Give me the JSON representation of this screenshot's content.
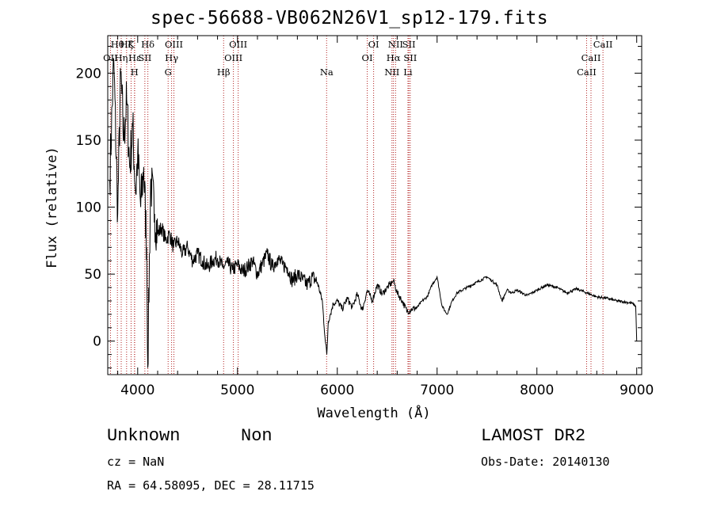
{
  "chart_data": {
    "type": "line",
    "title": "spec-56688-VB062N26V1_sp12-179.fits",
    "xlabel": "Wavelength (Å)",
    "ylabel": "Flux (relative)",
    "xlim": [
      3700,
      9050
    ],
    "ylim": [
      -25,
      228
    ],
    "xticks": [
      4000,
      5000,
      6000,
      7000,
      8000,
      9000
    ],
    "yticks": [
      0,
      50,
      100,
      150,
      200
    ],
    "grid": false,
    "series": [
      {
        "x": [
          3720,
          3760,
          3800,
          3830,
          3860,
          3890,
          3920,
          3950,
          3980,
          4000,
          4030,
          4060,
          4090,
          4101,
          4130,
          4170,
          4200,
          4240,
          4280,
          4320,
          4360,
          4400,
          4450,
          4500,
          4550,
          4600,
          4650,
          4700,
          4750,
          4800,
          4850,
          4900,
          4950,
          5000,
          5050,
          5100,
          5150,
          5200,
          5250,
          5300,
          5350,
          5400,
          5450,
          5500,
          5550,
          5600,
          5650,
          5700,
          5750,
          5800,
          5850,
          5880,
          5895,
          5910,
          5930,
          5960,
          6000,
          6050,
          6100,
          6150,
          6200,
          6250,
          6300,
          6350,
          6400,
          6450,
          6500,
          6550,
          6563,
          6600,
          6650,
          6700,
          6750,
          6800,
          6850,
          6900,
          6950,
          7000,
          7050,
          7100,
          7150,
          7200,
          7300,
          7400,
          7500,
          7550,
          7600,
          7650,
          7700,
          7750,
          7800,
          7900,
          8000,
          8100,
          8200,
          8300,
          8400,
          8500,
          8600,
          8700,
          8800,
          8900,
          8960,
          8990,
          9000
        ],
        "y": [
          120,
          210,
          95,
          200,
          150,
          180,
          130,
          160,
          110,
          140,
          100,
          130,
          70,
          -20,
          120,
          95,
          80,
          85,
          75,
          80,
          70,
          75,
          65,
          70,
          60,
          65,
          60,
          55,
          60,
          62,
          55,
          58,
          53,
          57,
          52,
          55,
          60,
          50,
          58,
          65,
          55,
          62,
          57,
          55,
          45,
          50,
          46,
          42,
          48,
          44,
          30,
          0,
          -10,
          15,
          20,
          28,
          30,
          24,
          32,
          25,
          35,
          23,
          38,
          30,
          42,
          35,
          40,
          44,
          45,
          36,
          30,
          22,
          24,
          25,
          30,
          33,
          42,
          48,
          26,
          20,
          30,
          36,
          40,
          44,
          48,
          45,
          42,
          30,
          38,
          36,
          38,
          34,
          38,
          42,
          40,
          36,
          39,
          36,
          33,
          32,
          30,
          29,
          28,
          26,
          0
        ]
      }
    ],
    "line_labels": [
      {
        "text": "OII",
        "wl": 3727,
        "row": 2
      },
      {
        "text": "Hθ",
        "wl": 3797,
        "row": 1
      },
      {
        "text": "Hη",
        "wl": 3835,
        "row": 2
      },
      {
        "text": "Hζ",
        "wl": 3889,
        "row": 1
      },
      {
        "text": "Hε",
        "wl": 3970,
        "row": 2
      },
      {
        "text": "K",
        "wl": 3934,
        "row": 1
      },
      {
        "text": "H",
        "wl": 3968,
        "row": 3
      },
      {
        "text": "Hδ",
        "wl": 4102,
        "row": 1
      },
      {
        "text": "SII",
        "wl": 4072,
        "row": 2
      },
      {
        "text": "OIII",
        "wl": 4363,
        "row": 1
      },
      {
        "text": "Hγ",
        "wl": 4340,
        "row": 2
      },
      {
        "text": "G",
        "wl": 4305,
        "row": 3
      },
      {
        "text": "Hβ",
        "wl": 4861,
        "row": 3
      },
      {
        "text": "OIII",
        "wl": 5007,
        "row": 1
      },
      {
        "text": "OIII",
        "wl": 4959,
        "row": 2
      },
      {
        "text": "Na",
        "wl": 5893,
        "row": 3
      },
      {
        "text": "OI",
        "wl": 6364,
        "row": 1
      },
      {
        "text": "OI",
        "wl": 6300,
        "row": 2
      },
      {
        "text": "NII",
        "wl": 6584,
        "row": 1
      },
      {
        "text": "SII",
        "wl": 6717,
        "row": 1
      },
      {
        "text": "Hα",
        "wl": 6563,
        "row": 2
      },
      {
        "text": "SII",
        "wl": 6731,
        "row": 2
      },
      {
        "text": "NII",
        "wl": 6548,
        "row": 3
      },
      {
        "text": "Li",
        "wl": 6708,
        "row": 3
      },
      {
        "text": "CaII",
        "wl": 8662,
        "row": 1
      },
      {
        "text": "CaII",
        "wl": 8542,
        "row": 2
      },
      {
        "text": "CaII",
        "wl": 8498,
        "row": 3
      }
    ],
    "line_markers": [
      3727,
      3797,
      3835,
      3889,
      3934,
      3968,
      3970,
      4072,
      4102,
      4305,
      4340,
      4363,
      4861,
      4959,
      5007,
      5893,
      6300,
      6364,
      6548,
      6563,
      6584,
      6708,
      6717,
      6731,
      8498,
      8542,
      8662
    ],
    "marker_color": "#b22222"
  },
  "info": {
    "object_class": "Unknown",
    "subclass": "Non",
    "survey": "LAMOST DR2",
    "cz": "cz = NaN",
    "obs_date": "Obs-Date: 20140130",
    "coords": "RA =  64.58095, DEC =  28.11715"
  }
}
